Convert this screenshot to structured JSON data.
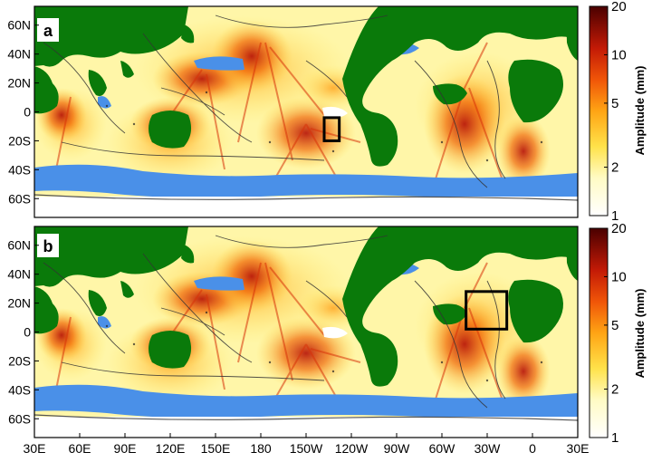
{
  "chart_data": [
    {
      "type": "heatmap",
      "panel_label": "a",
      "title": "",
      "xlabel": "",
      "ylabel": "",
      "x_ticks": [
        "30E",
        "60E",
        "90E",
        "120E",
        "150E",
        "180",
        "150W",
        "120W",
        "90W",
        "60W",
        "30W",
        "0",
        "30E"
      ],
      "y_ticks": [
        "60N",
        "40N",
        "20N",
        "0",
        "20S",
        "40S",
        "60S"
      ],
      "x_range_deg_east": [
        30,
        390
      ],
      "y_range_deg_north": [
        -73,
        73
      ],
      "highlight_box": {
        "lon_min": 222,
        "lon_max": 232,
        "lat_min": -20,
        "lat_max": -4
      },
      "colorbar": {
        "label": "Amplitude (mm)",
        "scale": "log",
        "range": [
          1,
          20
        ],
        "ticks": [
          1,
          2,
          5,
          10,
          20
        ]
      },
      "land_color": "#0a7a0a",
      "no_data_color": "#4a90e8"
    },
    {
      "type": "heatmap",
      "panel_label": "b",
      "title": "",
      "xlabel": "",
      "ylabel": "",
      "x_ticks": [
        "30E",
        "60E",
        "90E",
        "120E",
        "150E",
        "180",
        "150W",
        "120W",
        "90W",
        "60W",
        "30W",
        "0",
        "30E"
      ],
      "y_ticks": [
        "60N",
        "40N",
        "20N",
        "0",
        "20S",
        "40S",
        "60S"
      ],
      "x_range_deg_east": [
        30,
        390
      ],
      "y_range_deg_north": [
        -73,
        73
      ],
      "highlight_box": {
        "lon_min": 316,
        "lon_max": 343,
        "lat_min": 2,
        "lat_max": 28
      },
      "colorbar": {
        "label": "Amplitude (mm)",
        "scale": "log",
        "range": [
          1,
          20
        ],
        "ticks": [
          1,
          2,
          5,
          10,
          20
        ]
      },
      "land_color": "#0a7a0a",
      "no_data_color": "#4a90e8"
    }
  ]
}
